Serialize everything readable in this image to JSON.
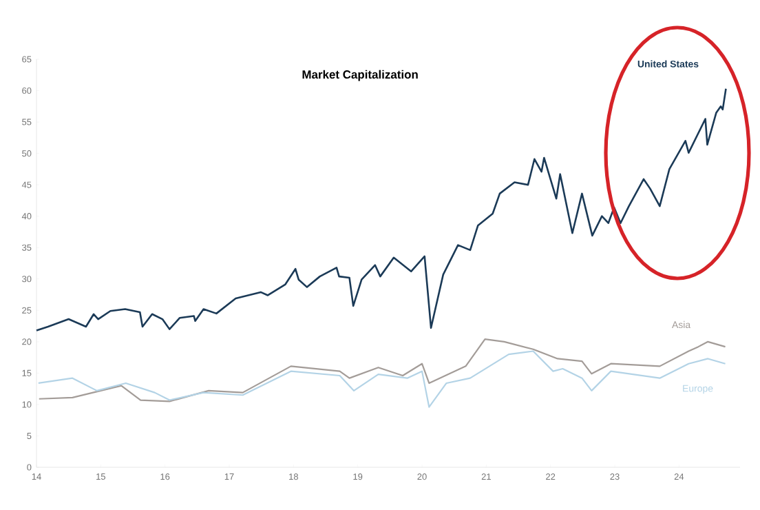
{
  "chart_data": {
    "type": "line",
    "title": "Market Capitalization",
    "xlim": [
      14,
      24.95
    ],
    "xticks": [
      14,
      15,
      16,
      17,
      18,
      19,
      20,
      21,
      22,
      23,
      24
    ],
    "ylim": [
      0,
      65
    ],
    "yticks": [
      0,
      5,
      10,
      15,
      20,
      25,
      30,
      35,
      40,
      45,
      50,
      55,
      60,
      65
    ],
    "grid": false,
    "legend": false,
    "marker": "none",
    "line_style": "solid",
    "series": [
      {
        "name": "United States",
        "color": "#1b3a57",
        "x": [
          14.0,
          14.18,
          14.5,
          14.77,
          14.89,
          14.96,
          15.15,
          15.38,
          15.61,
          15.65,
          15.8,
          15.96,
          16.07,
          16.23,
          16.45,
          16.47,
          16.6,
          16.8,
          17.1,
          17.49,
          17.6,
          17.87,
          18.03,
          18.08,
          18.21,
          18.41,
          18.67,
          18.71,
          18.87,
          18.93,
          19.06,
          19.27,
          19.35,
          19.56,
          19.83,
          20.04,
          20.14,
          20.33,
          20.56,
          20.75,
          20.87,
          21.1,
          21.21,
          21.44,
          21.65,
          21.75,
          21.86,
          21.9,
          22.09,
          22.15,
          22.34,
          22.49,
          22.65,
          22.8,
          22.9,
          22.99,
          23.09,
          23.22,
          23.45,
          23.55,
          23.7,
          23.85,
          24.1,
          24.15,
          24.41,
          24.44,
          24.58,
          24.65,
          24.68,
          24.73
        ],
        "values": [
          21.8,
          22.4,
          23.6,
          22.4,
          24.4,
          23.6,
          24.9,
          25.2,
          24.7,
          22.4,
          24.4,
          23.6,
          22.0,
          23.8,
          24.1,
          23.3,
          25.2,
          24.5,
          26.9,
          27.9,
          27.4,
          29.1,
          31.6,
          29.9,
          28.7,
          30.4,
          31.8,
          30.4,
          30.2,
          25.7,
          29.9,
          32.2,
          30.4,
          33.4,
          31.2,
          33.6,
          22.2,
          30.7,
          35.4,
          34.6,
          38.5,
          40.4,
          43.6,
          45.4,
          45.0,
          49.1,
          47.1,
          49.3,
          42.8,
          46.7,
          37.3,
          43.6,
          36.9,
          40.0,
          38.9,
          41.4,
          38.9,
          41.6,
          45.9,
          44.4,
          41.6,
          47.5,
          52.0,
          50.1,
          55.5,
          51.4,
          56.5,
          57.5,
          57.0,
          60.3
        ]
      },
      {
        "name": "Asia",
        "color": "#a39c98",
        "x": [
          14.04,
          14.56,
          15.32,
          15.62,
          16.07,
          16.68,
          17.21,
          17.96,
          18.72,
          18.87,
          19.32,
          19.7,
          20.0,
          20.11,
          20.68,
          20.98,
          21.28,
          21.73,
          22.11,
          22.49,
          22.64,
          22.94,
          23.7,
          24.15,
          24.3,
          24.45,
          24.72
        ],
        "values": [
          10.9,
          11.1,
          13.0,
          10.7,
          10.5,
          12.2,
          11.9,
          16.1,
          15.3,
          14.2,
          15.9,
          14.6,
          16.5,
          13.4,
          16.1,
          20.4,
          20.0,
          18.8,
          17.3,
          16.9,
          14.9,
          16.5,
          16.1,
          18.5,
          19.2,
          20.0,
          19.2
        ]
      },
      {
        "name": "Europe",
        "color": "#b3d3e6",
        "x": [
          14.03,
          14.56,
          14.94,
          15.39,
          15.84,
          16.07,
          16.6,
          17.21,
          17.96,
          18.72,
          18.94,
          19.32,
          19.77,
          20.0,
          20.11,
          20.38,
          20.75,
          21.35,
          21.73,
          22.04,
          22.19,
          22.49,
          22.64,
          22.94,
          23.7,
          24.15,
          24.45,
          24.72
        ],
        "values": [
          13.4,
          14.2,
          12.2,
          13.4,
          11.9,
          10.7,
          11.9,
          11.5,
          15.3,
          14.6,
          12.2,
          14.8,
          14.2,
          15.3,
          9.6,
          13.4,
          14.2,
          18.0,
          18.5,
          15.3,
          15.7,
          14.2,
          12.2,
          15.3,
          14.2,
          16.5,
          17.3,
          16.5
        ]
      }
    ]
  }
}
